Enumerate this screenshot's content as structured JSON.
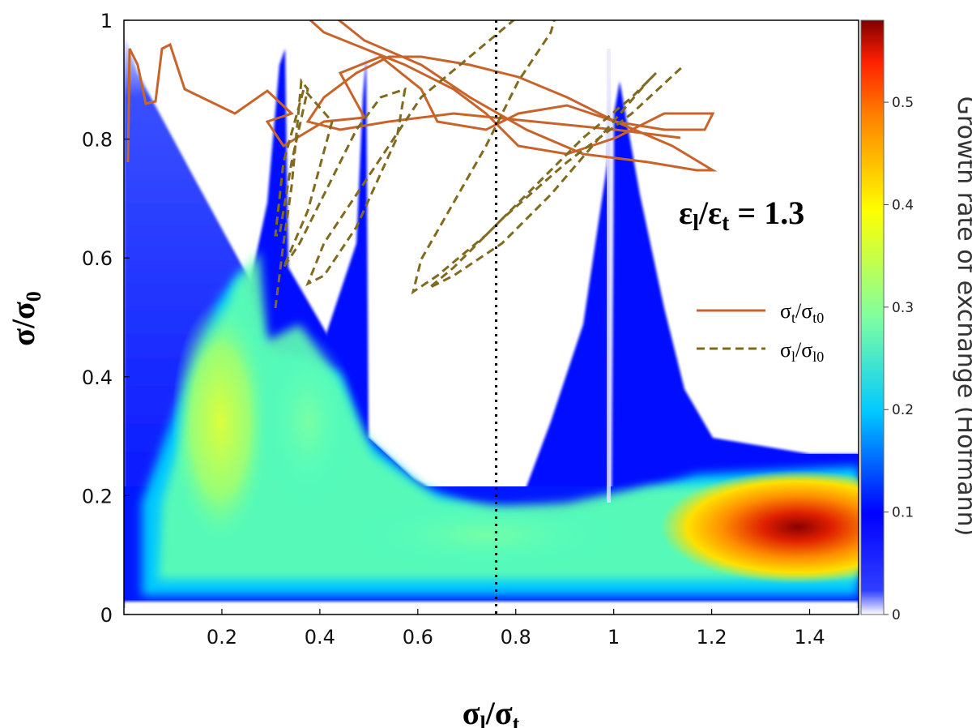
{
  "chart_data": {
    "type": "heatmap",
    "xlabel": {
      "main": "σ",
      "sub1": "l",
      "mid": "/σ",
      "sub2": "t"
    },
    "ylabel": {
      "main": "σ/σ",
      "sub": "0"
    },
    "xlim": [
      0.0,
      1.5
    ],
    "ylim": [
      0.0,
      1.0
    ],
    "x_ticks": [
      0.2,
      0.4,
      0.6,
      0.8,
      1.0,
      1.2,
      1.4
    ],
    "x_tick_labels": [
      "0.2",
      "0.4",
      "0.6",
      "0.8",
      "1",
      "1.2",
      "1.4"
    ],
    "y_ticks": [
      0,
      0.2,
      0.4,
      0.6,
      0.8,
      1.0
    ],
    "y_tick_labels": [
      "0",
      "0.2",
      "0.4",
      "0.6",
      "0.8",
      "1"
    ],
    "colorbar": {
      "title": "Growth rate of exchange (Hofmann)",
      "range": [
        0,
        0.58
      ],
      "ticks": [
        0,
        0.1,
        0.2,
        0.3,
        0.4,
        0.5
      ],
      "tick_labels": [
        "0",
        "0.1",
        "0.2",
        "0.3",
        "0.4",
        "0.5"
      ],
      "colormap": [
        "#ffffff",
        "#0000ff",
        "#00bfff",
        "#7fffb2",
        "#ffff00",
        "#ff8000",
        "#ff2000",
        "#7f0000"
      ]
    },
    "annotation": {
      "main": "ε",
      "sub1": "l",
      "mid": "/ε",
      "sub2": "t",
      "suffix": " = 1.3"
    },
    "reference_line": {
      "x": 0.76,
      "style": "dotted",
      "color": "#000000"
    },
    "resonance_lines_x": [
      0.333,
      0.5,
      1.0
    ],
    "series": [
      {
        "name": {
          "main": "σ",
          "sub1": "t",
          "mid": "/σ",
          "sub2": "t0"
        },
        "style": "solid",
        "color": "#c8642a"
      },
      {
        "name": {
          "main": "σ",
          "sub1": "l",
          "mid": "/σ",
          "sub2": "l0"
        },
        "style": "dashed",
        "color": "#7f6a1e"
      }
    ],
    "legend_position": "right-middle"
  }
}
